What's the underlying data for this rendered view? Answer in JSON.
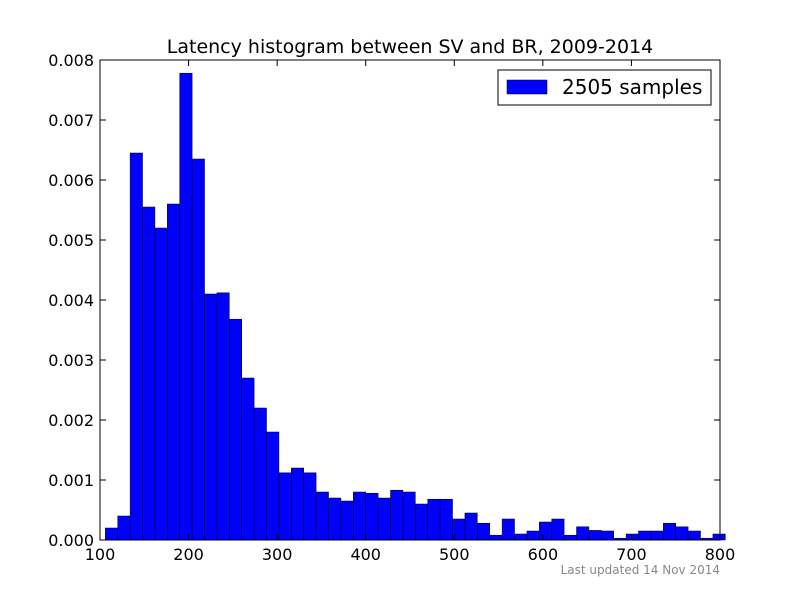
{
  "chart_data": {
    "type": "bar",
    "title": "Latency histogram between SV and BR, 2009-2014",
    "xlabel": "",
    "ylabel": "",
    "xlim": [
      100,
      800
    ],
    "ylim": [
      0,
      0.008
    ],
    "x_ticks": [
      100,
      200,
      300,
      400,
      500,
      600,
      700,
      800
    ],
    "y_ticks": [
      0.0,
      0.001,
      0.002,
      0.003,
      0.004,
      0.005,
      0.006,
      0.007,
      0.008
    ],
    "x_tick_labels": [
      "100",
      "200",
      "300",
      "400",
      "500",
      "600",
      "700",
      "800"
    ],
    "y_tick_labels": [
      "0.000",
      "0.001",
      "0.002",
      "0.003",
      "0.004",
      "0.005",
      "0.006",
      "0.007",
      "0.008"
    ],
    "grid": false,
    "legend_position": "top-right",
    "bin_width": 14,
    "bins_start": [
      106,
      120,
      134,
      148,
      162,
      176,
      190,
      204,
      218,
      232,
      246,
      260,
      274,
      288,
      302,
      316,
      330,
      344,
      358,
      372,
      386,
      400,
      414,
      428,
      442,
      456,
      470,
      484,
      498,
      512,
      526,
      540,
      554,
      568,
      582,
      596,
      610,
      624,
      638,
      652,
      666,
      680,
      694,
      708,
      722,
      736,
      750,
      764,
      778,
      792
    ],
    "series": [
      {
        "name": "2505 samples",
        "color": "#0000ff",
        "values": [
          0.0002,
          0.0004,
          0.00645,
          0.00555,
          0.0052,
          0.0056,
          0.00778,
          0.00635,
          0.0041,
          0.00412,
          0.00368,
          0.0027,
          0.0022,
          0.0018,
          0.00112,
          0.0012,
          0.00112,
          0.0008,
          0.0007,
          0.00065,
          0.0008,
          0.00078,
          0.0007,
          0.00083,
          0.0008,
          0.0006,
          0.00068,
          0.00068,
          0.00035,
          0.00045,
          0.00028,
          8e-05,
          0.00035,
          0.0001,
          0.00015,
          0.0003,
          0.00035,
          8e-05,
          0.00022,
          0.00016,
          0.00015,
          3e-05,
          0.0001,
          0.00015,
          0.00015,
          0.00028,
          0.00022,
          0.00015,
          3e-05,
          0.0001
        ]
      }
    ]
  },
  "footnote": "Last updated 14 Nov 2014"
}
